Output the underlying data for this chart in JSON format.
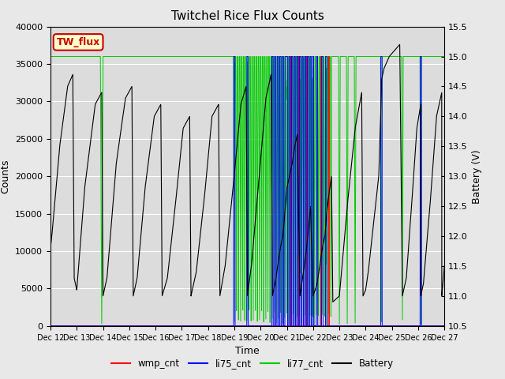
{
  "title": "Twitchel Rice Flux Counts",
  "xlabel": "Time",
  "ylabel_left": "Counts",
  "ylabel_right": "Battery (V)",
  "ylim_left": [
    0,
    40000
  ],
  "ylim_right": [
    10.5,
    15.5
  ],
  "fig_bg_color": "#e8e8e8",
  "plot_bg_color": "#dcdcdc",
  "label_box": "TW_flux",
  "label_box_facecolor": "#ffffcc",
  "label_box_edgecolor": "#cc0000",
  "label_text_color": "#cc0000",
  "xticklabels": [
    "Dec 12",
    "Dec 13",
    "Dec 14",
    "Dec 15",
    "Dec 16",
    "Dec 17",
    "Dec 18",
    "Dec 19",
    "Dec 20",
    "Dec 21",
    "Dec 22",
    "Dec 23",
    "Dec 24",
    "Dec 25",
    "Dec 26",
    "Dec 27"
  ],
  "colors": {
    "wmp_cnt": "#ff0000",
    "li75_cnt": "#0000ff",
    "li77_cnt": "#00cc00",
    "Battery": "#000000"
  },
  "legend_labels": [
    "wmp_cnt",
    "li75_cnt",
    "li77_cnt",
    "Battery"
  ],
  "battery_x": [
    0,
    0.05,
    0.35,
    0.65,
    0.85,
    0.9,
    0.9,
    1.0,
    1.3,
    1.7,
    1.95,
    2.0,
    2.0,
    2.15,
    2.5,
    2.85,
    3.1,
    3.15,
    3.15,
    3.3,
    3.6,
    3.95,
    4.2,
    4.25,
    4.25,
    4.45,
    4.75,
    5.05,
    5.3,
    5.35,
    5.35,
    5.55,
    5.85,
    6.15,
    6.4,
    6.45,
    6.45,
    6.65,
    6.95,
    7.25,
    7.45,
    7.5,
    7.5,
    7.65,
    7.95,
    8.2,
    8.4,
    8.45,
    8.45,
    8.55,
    8.65,
    8.75,
    8.85,
    8.95,
    9.0,
    9.1,
    9.2,
    9.3,
    9.4,
    9.5,
    9.5,
    9.6,
    9.7,
    9.8,
    9.9,
    10.0,
    10.0,
    10.15,
    10.25,
    10.35,
    10.45,
    10.5,
    10.6,
    10.7,
    10.75,
    10.75,
    11.0,
    11.3,
    11.6,
    11.85,
    11.9,
    12.0,
    12.1,
    12.3,
    12.5,
    12.6,
    12.6,
    12.7,
    12.9,
    13.1,
    13.3,
    13.4,
    13.4,
    13.55,
    13.75,
    13.95,
    14.1,
    14.1,
    14.2,
    14.45,
    14.7,
    14.9,
    14.9,
    15.0
  ],
  "battery_v": [
    11.8,
    12.0,
    13.5,
    14.5,
    14.7,
    11.3,
    11.3,
    11.1,
    12.8,
    14.2,
    14.4,
    11.0,
    11.0,
    11.3,
    13.2,
    14.3,
    14.5,
    11.0,
    11.0,
    11.3,
    12.8,
    14.0,
    14.2,
    11.0,
    11.0,
    11.3,
    12.5,
    13.8,
    14.0,
    11.0,
    11.0,
    11.4,
    12.6,
    14.0,
    14.2,
    11.0,
    11.0,
    11.5,
    12.8,
    14.2,
    14.5,
    11.0,
    11.0,
    11.5,
    13.0,
    14.3,
    14.7,
    11.0,
    11.0,
    11.2,
    11.5,
    11.8,
    12.0,
    12.5,
    12.8,
    13.0,
    13.2,
    13.5,
    13.7,
    11.0,
    11.0,
    11.3,
    11.6,
    12.0,
    12.5,
    11.0,
    11.0,
    11.2,
    11.5,
    11.8,
    12.0,
    12.3,
    12.7,
    13.0,
    10.9,
    10.9,
    11.0,
    12.5,
    13.8,
    14.4,
    11.0,
    11.1,
    11.4,
    12.2,
    13.0,
    14.4,
    14.6,
    14.8,
    15.0,
    15.1,
    15.2,
    11.0,
    11.0,
    11.3,
    12.5,
    13.8,
    14.2,
    11.0,
    11.2,
    12.5,
    14.0,
    14.4,
    11.0,
    11.5
  ],
  "li77_flat": 36000,
  "li77_dip_centers": [
    1.95,
    7.0,
    7.5,
    9.0,
    9.5,
    10.0,
    10.5,
    11.0,
    11.3,
    11.6,
    12.6,
    13.4,
    14.1
  ],
  "li77_dip_widths": [
    0.05,
    0.03,
    0.03,
    0.03,
    0.03,
    0.03,
    0.03,
    0.03,
    0.03,
    0.03,
    0.03,
    0.03,
    0.03
  ],
  "wmp_centers": [
    9.15,
    9.45,
    9.75,
    10.3,
    10.6
  ],
  "li75_centers": [
    7.0,
    7.5,
    8.45,
    8.55,
    8.65,
    8.75,
    8.85,
    8.95,
    9.0,
    9.1,
    9.2,
    9.3,
    9.4,
    9.5,
    9.6,
    9.7,
    9.8,
    9.9,
    10.0,
    10.15,
    10.35,
    10.5,
    12.6,
    14.1
  ]
}
